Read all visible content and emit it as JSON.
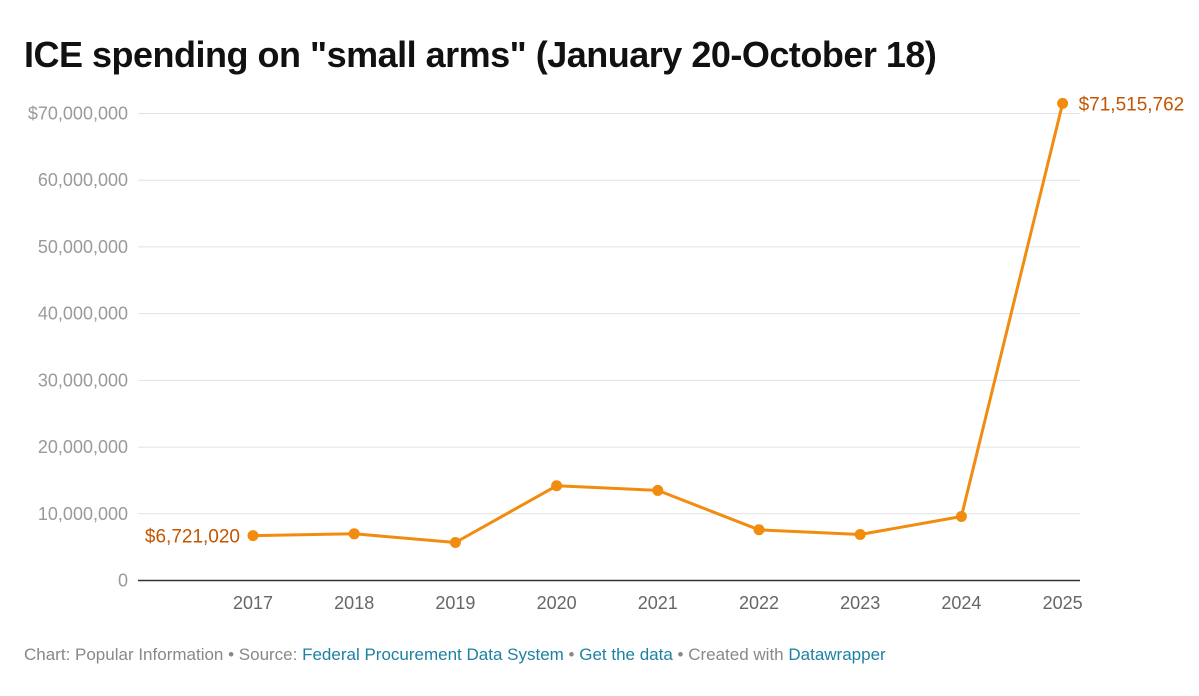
{
  "chart_data": {
    "type": "line",
    "title": "ICE spending on \"small arms\" (January 20-October 18)",
    "x": [
      "2017",
      "2018",
      "2019",
      "2020",
      "2021",
      "2022",
      "2023",
      "2024",
      "2025"
    ],
    "series": [
      {
        "values": [
          6721020,
          7000000,
          5700000,
          14200000,
          13500000,
          7600000,
          6900000,
          9600000,
          71515762
        ]
      }
    ],
    "y_tick_labels": [
      "0",
      "10,000,000",
      "20,000,000",
      "30,000,000",
      "40,000,000",
      "50,000,000",
      "60,000,000",
      "$70,000,000"
    ],
    "y_tick_values": [
      0,
      10000000,
      20000000,
      30000000,
      40000000,
      50000000,
      60000000,
      70000000
    ],
    "ylim": [
      0,
      72000000
    ],
    "annotations": [
      {
        "index": 0,
        "text": "$6,721,020"
      },
      {
        "index": 8,
        "text": "$71,515,762"
      }
    ],
    "grid": true,
    "line_color": "#f28c0f",
    "label_color": "#c45500"
  },
  "footer": {
    "prefix": "Chart: Popular Information • Source: ",
    "source_link": "Federal Procurement Data System",
    "sep1": " • ",
    "data_link": "Get the data",
    "sep2": " • Created with ",
    "tool_link": "Datawrapper"
  }
}
